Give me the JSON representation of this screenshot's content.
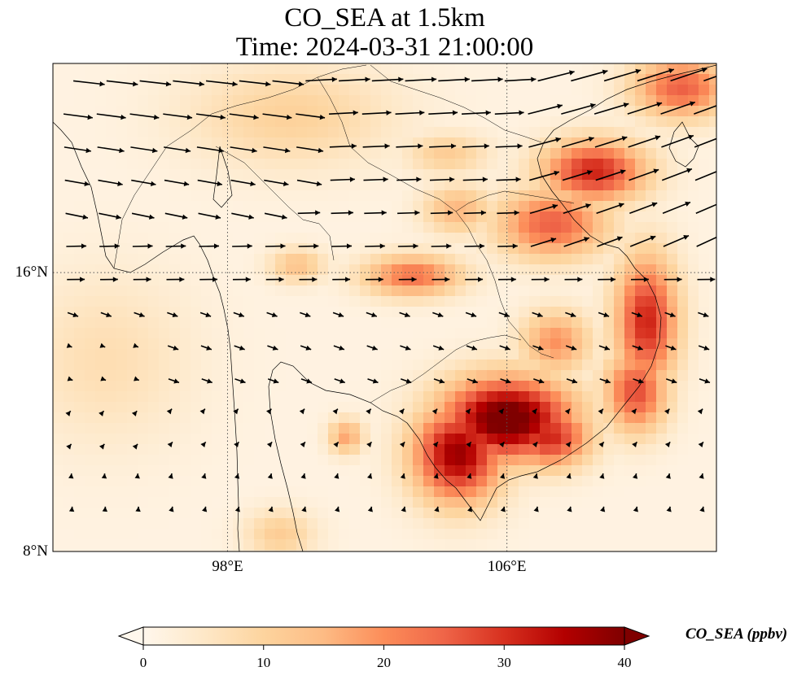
{
  "title": {
    "line1": "CO_SEA at 1.5km",
    "line2": "Time: 2024-03-31 21:00:00"
  },
  "map": {
    "projection": "PlateCarree",
    "lon_range": [
      93,
      112
    ],
    "lat_range": [
      8,
      22
    ],
    "gridlines": {
      "style": "dotted",
      "lons": [
        98,
        106
      ],
      "lats": [
        16
      ]
    },
    "lon_ticks": [
      {
        "value": 98,
        "label": "98°E"
      },
      {
        "value": 106,
        "label": "106°E"
      }
    ],
    "lat_ticks": [
      {
        "value": 16,
        "label": "16°N"
      },
      {
        "value": 8,
        "label": "8°N"
      }
    ],
    "field": {
      "name": "CO_SEA",
      "units": "ppbv",
      "colormap": "OrRd",
      "vmin": 0,
      "vmax": 40,
      "plumes": [
        {
          "lon": 106.0,
          "lat": 11.8,
          "rlon": 1.9,
          "rlat": 1.2,
          "value": 42
        },
        {
          "lon": 104.6,
          "lat": 10.8,
          "rlon": 1.3,
          "rlat": 1.4,
          "value": 36
        },
        {
          "lon": 107.2,
          "lat": 11.3,
          "rlon": 1.2,
          "rlat": 0.9,
          "value": 30
        },
        {
          "lon": 110.0,
          "lat": 14.6,
          "rlon": 0.9,
          "rlat": 1.9,
          "value": 30
        },
        {
          "lon": 109.7,
          "lat": 12.6,
          "rlon": 0.9,
          "rlat": 1.2,
          "value": 26
        },
        {
          "lon": 108.5,
          "lat": 18.9,
          "rlon": 1.5,
          "rlat": 0.9,
          "value": 30
        },
        {
          "lon": 107.3,
          "lat": 17.4,
          "rlon": 1.6,
          "rlat": 1.0,
          "value": 24
        },
        {
          "lon": 111.0,
          "lat": 21.3,
          "rlon": 1.4,
          "rlat": 0.9,
          "value": 24
        },
        {
          "lon": 103.3,
          "lat": 15.9,
          "rlon": 1.4,
          "rlat": 0.6,
          "value": 22
        },
        {
          "lon": 104.6,
          "lat": 17.8,
          "rlon": 1.0,
          "rlat": 0.7,
          "value": 14
        },
        {
          "lon": 107.4,
          "lat": 14.0,
          "rlon": 1.0,
          "rlat": 0.9,
          "value": 18
        },
        {
          "lon": 101.4,
          "lat": 11.3,
          "rlon": 0.5,
          "rlat": 0.5,
          "value": 16
        },
        {
          "lon": 100.0,
          "lat": 16.2,
          "rlon": 0.8,
          "rlat": 0.5,
          "value": 12
        },
        {
          "lon": 99.8,
          "lat": 20.5,
          "rlon": 3.0,
          "rlat": 1.5,
          "value": 9
        },
        {
          "lon": 94.5,
          "lat": 13.5,
          "rlon": 2.5,
          "rlat": 2.5,
          "value": 6
        },
        {
          "lon": 99.5,
          "lat": 8.5,
          "rlon": 1.0,
          "rlat": 0.7,
          "value": 10
        },
        {
          "lon": 104.3,
          "lat": 19.4,
          "rlon": 1.2,
          "rlat": 0.6,
          "value": 10
        }
      ]
    },
    "wind_vectors": {
      "style": "quiver",
      "color": "#000000"
    }
  },
  "colorbar": {
    "label": "CO_SEA (ppbv)",
    "extend": "both",
    "ticks": [
      {
        "value": 0,
        "label": "0"
      },
      {
        "value": 10,
        "label": "10"
      },
      {
        "value": 20,
        "label": "20"
      },
      {
        "value": 30,
        "label": "30"
      },
      {
        "value": 40,
        "label": "40"
      }
    ]
  }
}
